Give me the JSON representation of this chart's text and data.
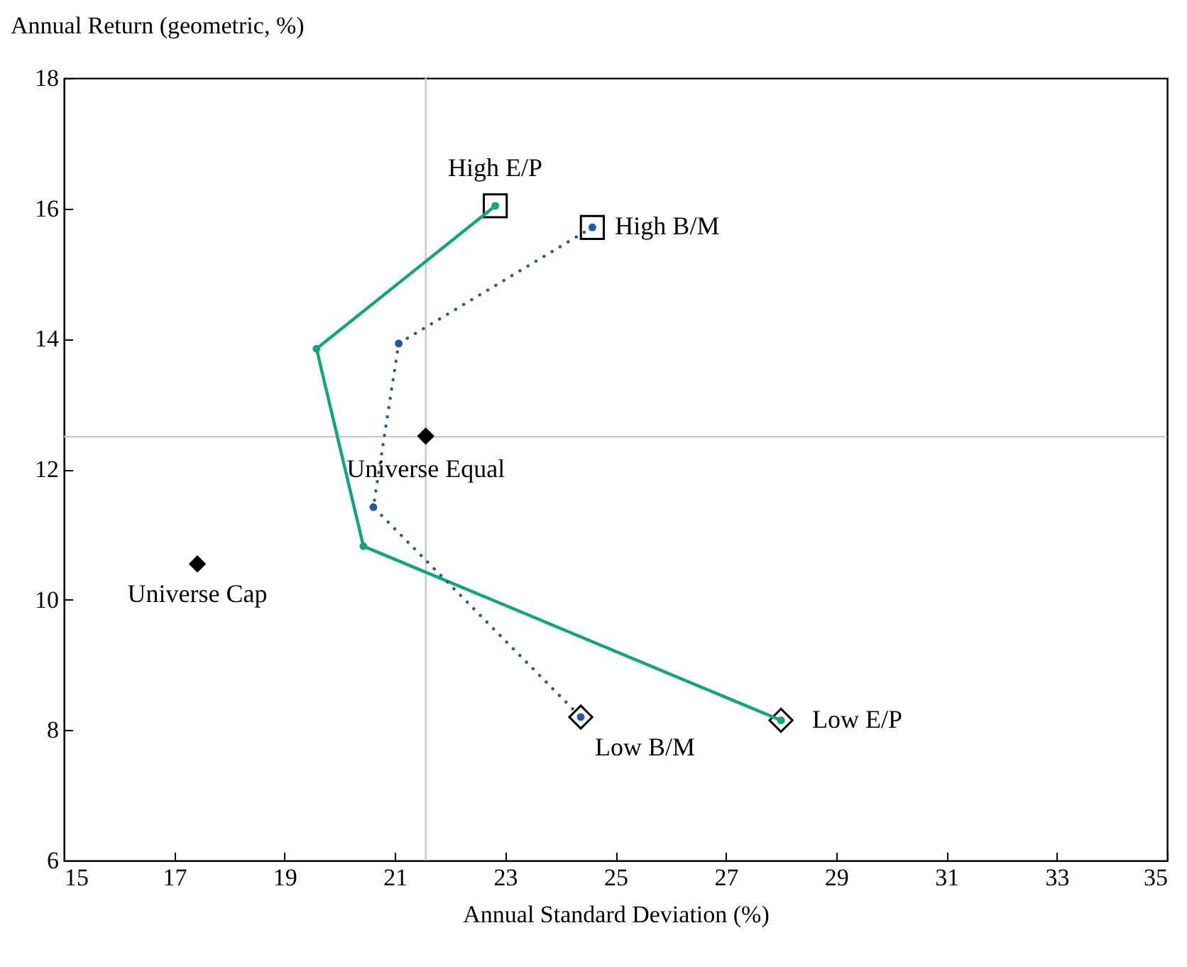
{
  "chart_data": {
    "type": "line",
    "xlabel": "Annual Standard Deviation (%)",
    "ylabel": "Annual Return (geometric, %)",
    "xlim": [
      15,
      35
    ],
    "xticks": [
      15,
      17,
      19,
      21,
      23,
      25,
      27,
      29,
      31,
      33,
      35
    ],
    "ylim": [
      6,
      18
    ],
    "yticks": [
      6,
      8,
      10,
      12,
      14,
      16,
      18
    ],
    "grid": false,
    "series": [
      {
        "color": "#12a37f",
        "marker": "circle",
        "line_style": "solid",
        "x": [
          22.82,
          19.58,
          20.43,
          28.0
        ],
        "values": [
          16.04,
          13.85,
          10.82,
          8.15
        ]
      },
      {
        "color": "#1f5aa6",
        "marker": "circle",
        "line_style": "dotted",
        "x": [
          24.58,
          21.07,
          20.61,
          24.37
        ],
        "values": [
          15.71,
          13.93,
          11.42,
          8.2
        ]
      },
      {
        "type": "scatter",
        "color": "#000000",
        "marker": "square",
        "x": [
          22.82,
          24.58
        ],
        "values": [
          16.04,
          15.71
        ]
      },
      {
        "type": "scatter",
        "color": "#000000",
        "marker": "diamond",
        "x": [
          24.37,
          28.0
        ],
        "values": [
          8.2,
          8.15
        ]
      },
      {
        "type": "scatter",
        "color": "#000000",
        "marker": "diamond",
        "x": [
          21.56,
          17.42
        ],
        "values": [
          12.51,
          10.55
        ]
      }
    ],
    "ref_lines": [
      {
        "axis": "x",
        "value": 21.56,
        "color": "#c8c8c8"
      },
      {
        "axis": "y",
        "value": 12.5,
        "color": "#c8c8c8"
      }
    ],
    "annotations": [
      {
        "text": "High E/P",
        "x": 22.82,
        "y": 16.04
      },
      {
        "text": "High B/M",
        "x": 24.58,
        "y": 15.71
      },
      {
        "text": "Universe Equal",
        "x": 21.56,
        "y": 12.51
      },
      {
        "text": "Universe Cap",
        "x": 17.42,
        "y": 10.55
      },
      {
        "text": "Low B/M",
        "x": 24.37,
        "y": 8.2
      },
      {
        "text": "Low E/P",
        "x": 28.0,
        "y": 8.15
      }
    ]
  }
}
